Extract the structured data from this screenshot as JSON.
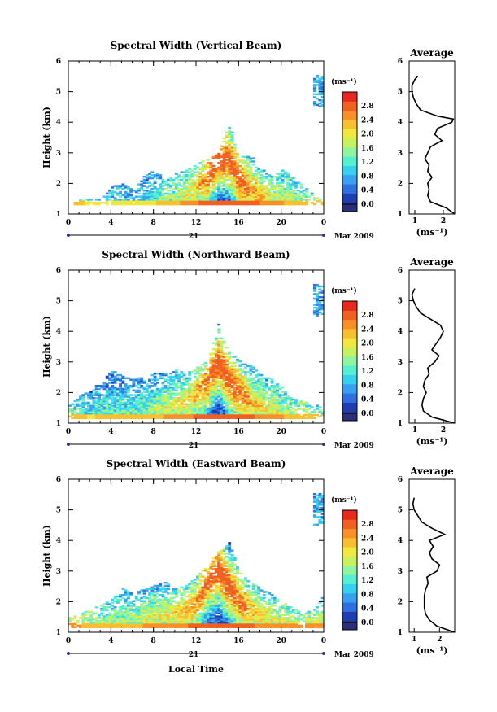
{
  "figure": {
    "xlabel": "Local Time",
    "date_day": "21",
    "date_label": "Mar 2009",
    "ylabel": "Height (km)",
    "colorbar_unit": "(ms⁻¹)",
    "average_xlabel": "(ms⁻¹)",
    "colormap": [
      "#2b2f7a",
      "#1f3fb0",
      "#2f6fe0",
      "#39a0f0",
      "#38d0f0",
      "#55f0d0",
      "#8ff5a0",
      "#c8f060",
      "#f0e840",
      "#f8c030",
      "#f89028",
      "#f06020",
      "#e8281c"
    ]
  },
  "chart_data": [
    {
      "type": "heatmap",
      "title": "Spectral Width (Vertical Beam)",
      "xlabel": "Local Time",
      "ylabel": "Height (km)",
      "xlim": [
        0,
        24
      ],
      "ylim": [
        1,
        6
      ],
      "x_ticks": [
        "0",
        "4",
        "8",
        "12",
        "16",
        "20",
        "0"
      ],
      "y_ticks": [
        "1",
        "2",
        "3",
        "4",
        "5",
        "6"
      ],
      "colorbar_ticks": [
        "0.0",
        "0.4",
        "0.8",
        "1.2",
        "1.6",
        "2.0",
        "2.4",
        "2.8"
      ],
      "colorbar_range": [
        0,
        3.2
      ],
      "average": {
        "title": "Average",
        "xlim": [
          0.8,
          2.4
        ],
        "x_ticks": [
          "1",
          "2"
        ],
        "ylim": [
          1,
          6
        ],
        "height": [
          1.0,
          1.2,
          1.4,
          1.6,
          1.8,
          2.0,
          2.2,
          2.4,
          2.6,
          2.8,
          3.0,
          3.2,
          3.4,
          3.6,
          3.8,
          4.0,
          4.1,
          4.2,
          4.4,
          4.6,
          4.8,
          5.0,
          5.2,
          5.4,
          5.5
        ],
        "value": [
          2.4,
          2.1,
          1.55,
          1.45,
          1.5,
          1.45,
          1.6,
          1.45,
          1.5,
          1.35,
          1.45,
          1.55,
          1.95,
          1.7,
          1.8,
          2.3,
          2.35,
          1.8,
          1.2,
          1.05,
          0.95,
          0.9,
          0.9,
          1.0,
          1.1
        ]
      },
      "echo_bottom_km": 1.3,
      "top_km": [
        1.3,
        1.5,
        1.5,
        1.5,
        1.9,
        2.0,
        1.8,
        2.2,
        2.4,
        2.1,
        2.3,
        2.4,
        2.6,
        2.8,
        3.0,
        3.9,
        2.9,
        2.9,
        2.5,
        2.2,
        2.4,
        2.2,
        1.9,
        1.6,
        1.4
      ],
      "peak_km": [
        1.3,
        1.3,
        1.3,
        1.3,
        1.3,
        1.3,
        1.3,
        1.3,
        1.5,
        1.5,
        1.5,
        1.6,
        1.9,
        2.2,
        2.8,
        2.8,
        2.1,
        1.8,
        1.6,
        1.5,
        1.5,
        1.5,
        1.4,
        1.3,
        1.3
      ],
      "strength": [
        0.3,
        0.28,
        0.25,
        0.22,
        0.2,
        0.2,
        0.2,
        0.2,
        0.25,
        0.35,
        0.4,
        0.5,
        0.6,
        0.8,
        0.9,
        0.9,
        0.85,
        0.7,
        0.6,
        0.5,
        0.45,
        0.4,
        0.35,
        0.3,
        0.3
      ]
    },
    {
      "type": "heatmap",
      "title": "Spectral Width (Northward Beam)",
      "xlabel": "Local Time",
      "ylabel": "Height (km)",
      "xlim": [
        0,
        24
      ],
      "ylim": [
        1,
        6
      ],
      "x_ticks": [
        "0",
        "4",
        "8",
        "12",
        "16",
        "20",
        "0"
      ],
      "y_ticks": [
        "1",
        "2",
        "3",
        "4",
        "5",
        "6"
      ],
      "colorbar_ticks": [
        "0.0",
        "0.4",
        "0.8",
        "1.2",
        "1.6",
        "2.0",
        "2.4",
        "2.8"
      ],
      "colorbar_range": [
        0,
        3.2
      ],
      "average": {
        "title": "Average",
        "xlim": [
          0.8,
          2.4
        ],
        "x_ticks": [
          "1",
          "2"
        ],
        "ylim": [
          1,
          6
        ],
        "height": [
          1.0,
          1.2,
          1.4,
          1.6,
          1.8,
          2.0,
          2.2,
          2.4,
          2.6,
          2.8,
          3.0,
          3.2,
          3.4,
          3.6,
          3.8,
          4.0,
          4.2,
          4.4,
          4.6,
          4.8,
          5.0,
          5.2,
          5.4
        ],
        "value": [
          2.4,
          1.6,
          1.3,
          1.25,
          1.3,
          1.4,
          1.3,
          1.35,
          1.5,
          1.45,
          1.7,
          1.85,
          1.6,
          1.75,
          1.9,
          2.0,
          1.9,
          1.55,
          1.2,
          1.05,
          0.95,
          0.9,
          1.0
        ]
      },
      "echo_bottom_km": 1.15,
      "top_km": [
        1.6,
        1.9,
        2.1,
        2.3,
        2.7,
        2.5,
        2.4,
        2.5,
        2.6,
        2.6,
        2.7,
        2.6,
        2.8,
        3.0,
        4.2,
        3.3,
        3.0,
        2.9,
        2.6,
        2.4,
        2.2,
        1.8,
        1.7,
        1.6,
        1.5
      ],
      "peak_km": [
        1.2,
        1.2,
        1.2,
        1.2,
        1.3,
        1.3,
        1.3,
        1.3,
        1.4,
        1.5,
        1.6,
        1.7,
        2.0,
        2.4,
        3.0,
        2.4,
        2.0,
        1.7,
        1.5,
        1.4,
        1.3,
        1.3,
        1.3,
        1.2,
        1.2
      ],
      "strength": [
        0.35,
        0.3,
        0.25,
        0.3,
        0.3,
        0.3,
        0.3,
        0.35,
        0.4,
        0.45,
        0.5,
        0.55,
        0.65,
        0.8,
        0.95,
        0.9,
        0.8,
        0.65,
        0.55,
        0.5,
        0.45,
        0.4,
        0.4,
        0.35,
        0.35
      ]
    },
    {
      "type": "heatmap",
      "title": "Spectral Width (Eastward Beam)",
      "xlabel": "Local Time",
      "ylabel": "Height (km)",
      "xlim": [
        0,
        24
      ],
      "ylim": [
        1,
        6
      ],
      "x_ticks": [
        "0",
        "4",
        "8",
        "12",
        "16",
        "20",
        "0"
      ],
      "y_ticks": [
        "1",
        "2",
        "3",
        "4",
        "5",
        "6"
      ],
      "colorbar_ticks": [
        "0.0",
        "0.4",
        "0.8",
        "1.2",
        "1.6",
        "2.0",
        "2.4",
        "2.8"
      ],
      "colorbar_range": [
        0,
        3.2
      ],
      "average": {
        "title": "Average",
        "xlim": [
          0.8,
          2.6
        ],
        "x_ticks": [
          "1",
          "2"
        ],
        "ylim": [
          1,
          6
        ],
        "height": [
          1.0,
          1.2,
          1.4,
          1.6,
          1.8,
          2.0,
          2.2,
          2.4,
          2.6,
          2.8,
          3.0,
          3.2,
          3.4,
          3.6,
          3.8,
          4.0,
          4.2,
          4.4,
          4.6,
          4.8,
          5.0,
          5.2,
          5.4
        ],
        "value": [
          2.6,
          1.9,
          1.6,
          1.45,
          1.4,
          1.4,
          1.4,
          1.45,
          1.55,
          1.5,
          1.9,
          2.0,
          1.7,
          1.6,
          1.75,
          1.6,
          2.2,
          1.7,
          1.3,
          1.15,
          1.0,
          0.95,
          1.0
        ]
      },
      "echo_bottom_km": 1.15,
      "top_km": [
        1.5,
        1.6,
        1.8,
        1.9,
        2.1,
        2.4,
        2.2,
        2.4,
        2.5,
        2.6,
        2.4,
        2.5,
        2.8,
        3.2,
        3.6,
        3.9,
        2.9,
        2.6,
        2.4,
        2.2,
        2.0,
        1.8,
        1.6,
        1.8,
        2.3
      ],
      "peak_km": [
        1.3,
        1.3,
        1.3,
        1.3,
        1.3,
        1.3,
        1.4,
        1.4,
        1.5,
        1.5,
        1.6,
        1.7,
        2.0,
        2.7,
        3.0,
        2.5,
        2.0,
        1.7,
        1.5,
        1.4,
        1.4,
        1.3,
        1.3,
        1.3,
        1.3
      ],
      "strength": [
        0.45,
        0.45,
        0.4,
        0.4,
        0.4,
        0.4,
        0.4,
        0.45,
        0.5,
        0.5,
        0.55,
        0.6,
        0.7,
        0.85,
        0.95,
        0.9,
        0.8,
        0.65,
        0.55,
        0.5,
        0.45,
        0.45,
        0.45,
        0.45,
        0.45
      ]
    }
  ]
}
